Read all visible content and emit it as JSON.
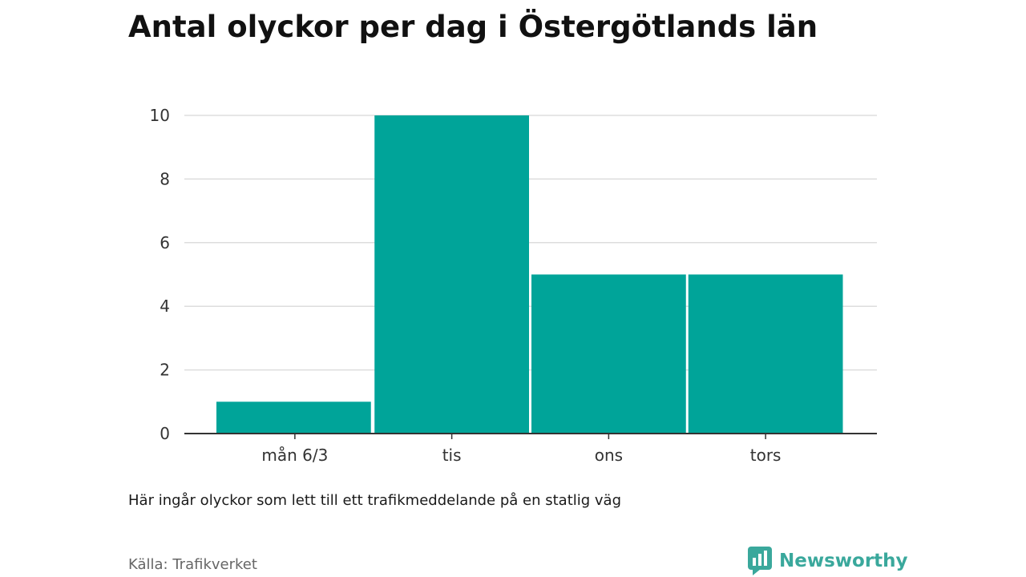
{
  "title": "Antal olyckor per dag i Östergötlands län",
  "note": "Här ingår olyckor som lett till ett trafikmeddelande på en statlig väg",
  "source": "Källa: Trafikverket",
  "brand": {
    "name": "Newsworthy",
    "icon": "newsworthy-logo-icon",
    "color": "#3aa89c"
  },
  "chart_data": {
    "type": "bar",
    "categories": [
      "mån 6/3",
      "tis",
      "ons",
      "tors"
    ],
    "values": [
      1,
      10,
      5,
      5
    ],
    "xlabel": "",
    "ylabel": "",
    "ylim": [
      0,
      10
    ],
    "yticks": [
      0,
      2,
      4,
      6,
      8,
      10
    ],
    "grid": true,
    "legend": "none",
    "bar_color": "#00a499"
  }
}
